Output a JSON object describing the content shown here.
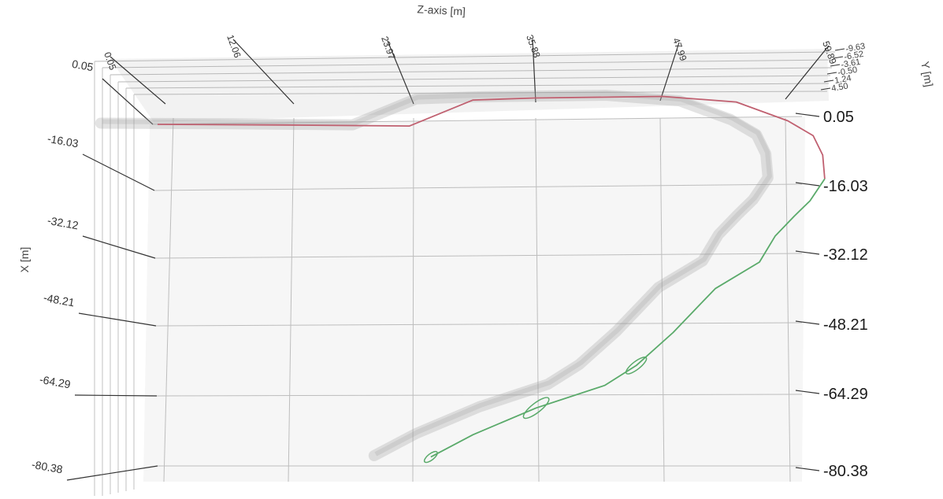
{
  "chart_data": {
    "type": "line",
    "projection": "3d",
    "title": "",
    "xlabel": "Z-axis [m]",
    "ylabel": "X [m]",
    "zlabel": "Y [m]",
    "z_ticks": [
      "0.05",
      "12.06",
      "23.97",
      "35.88",
      "47.99",
      "59.89"
    ],
    "x_ticks": [
      "0.05",
      "-16.03",
      "-32.12",
      "-48.21",
      "-64.29",
      "-80.38"
    ],
    "y_ticks": [
      "-9.63",
      "-6.52",
      "-3.61",
      "-0.50",
      "1.24",
      "4.50"
    ],
    "zlim": [
      0.05,
      59.89
    ],
    "xlim": [
      -80.38,
      0.05
    ],
    "grid": true,
    "series": [
      {
        "color": "#c06070",
        "points": [
          [
            0.05,
            -0.5
          ],
          [
            12.06,
            -1.0
          ],
          [
            23.97,
            -1.6
          ],
          [
            30.0,
            4.2
          ],
          [
            35.88,
            4.5
          ],
          [
            47.99,
            4.5
          ],
          [
            55.0,
            3.0
          ],
          [
            59.89,
            -1.5
          ],
          [
            62.3,
            -5.0
          ],
          [
            63.2,
            -9.5
          ],
          [
            63.4,
            -15.0
          ]
        ]
      },
      {
        "color": "#5aaa6a",
        "points": [
          [
            63.4,
            -15.0
          ],
          [
            62.0,
            -20.0
          ],
          [
            60.5,
            -23.5
          ],
          [
            58.7,
            -28.0
          ],
          [
            57.2,
            -34.0
          ],
          [
            53.0,
            -40.0
          ],
          [
            51.0,
            -45.0
          ],
          [
            49.0,
            -50.0
          ],
          [
            45.5,
            -57.5
          ],
          [
            42.5,
            -62.0
          ],
          [
            36.0,
            -67.0
          ],
          [
            30.0,
            -73.0
          ],
          [
            26.0,
            -78.0
          ]
        ]
      }
    ],
    "shadow_color": "#9a9a9a"
  }
}
